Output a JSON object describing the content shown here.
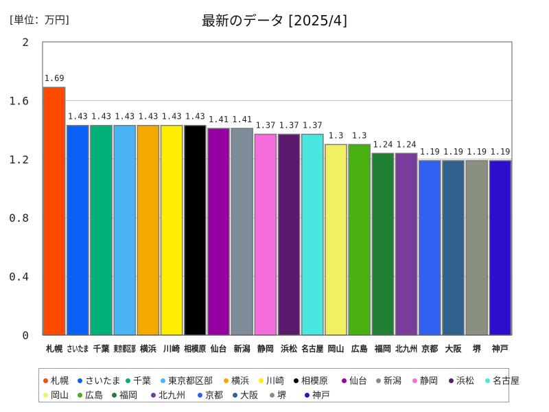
{
  "header": {
    "unit": "[単位：万円]"
  },
  "chart_data": {
    "type": "bar",
    "title": "最新のデータ [2025/4]",
    "categories": [
      "札幌",
      "さいたま",
      "千葉",
      "東京都区部",
      "横浜",
      "川崎",
      "相模原",
      "仙台",
      "新潟",
      "静岡",
      "浜松",
      "名古屋",
      "岡山",
      "広島",
      "福岡",
      "北九州",
      "京都",
      "大阪",
      "堺",
      "神戸"
    ],
    "axis_labels": [
      "札幌",
      "さいたま",
      "千葉",
      "東京都区部",
      "横浜",
      "川崎",
      "相模原",
      "仙台",
      "新潟",
      "静岡",
      "浜松",
      "名古屋",
      "岡山",
      "広島",
      "福岡",
      "北九州",
      "京都",
      "大阪",
      "堺",
      "神戸"
    ],
    "values": [
      1.69,
      1.43,
      1.43,
      1.43,
      1.43,
      1.43,
      1.43,
      1.41,
      1.41,
      1.37,
      1.37,
      1.37,
      1.3,
      1.3,
      1.24,
      1.24,
      1.19,
      1.19,
      1.19,
      1.19
    ],
    "colors": [
      "#ff4a00",
      "#0a5ff5",
      "#00b07a",
      "#4ab5f5",
      "#f5a800",
      "#ffee00",
      "#000000",
      "#9600a0",
      "#7f8c99",
      "#f56cdc",
      "#5c1a6e",
      "#4ae6e0",
      "#f0f060",
      "#48b010",
      "#1e8030",
      "#7a3c9c",
      "#3060f0",
      "#30608c",
      "#8a9080",
      "#2c0fcc"
    ],
    "ylim": [
      0,
      2
    ],
    "yticks": [
      "0",
      "0.4",
      "0.8",
      "1.2",
      "1.6",
      "2"
    ],
    "ytick_values": [
      0,
      0.4,
      0.8,
      1.2,
      1.6,
      2
    ],
    "grid": true,
    "legend_position": "bottom"
  }
}
